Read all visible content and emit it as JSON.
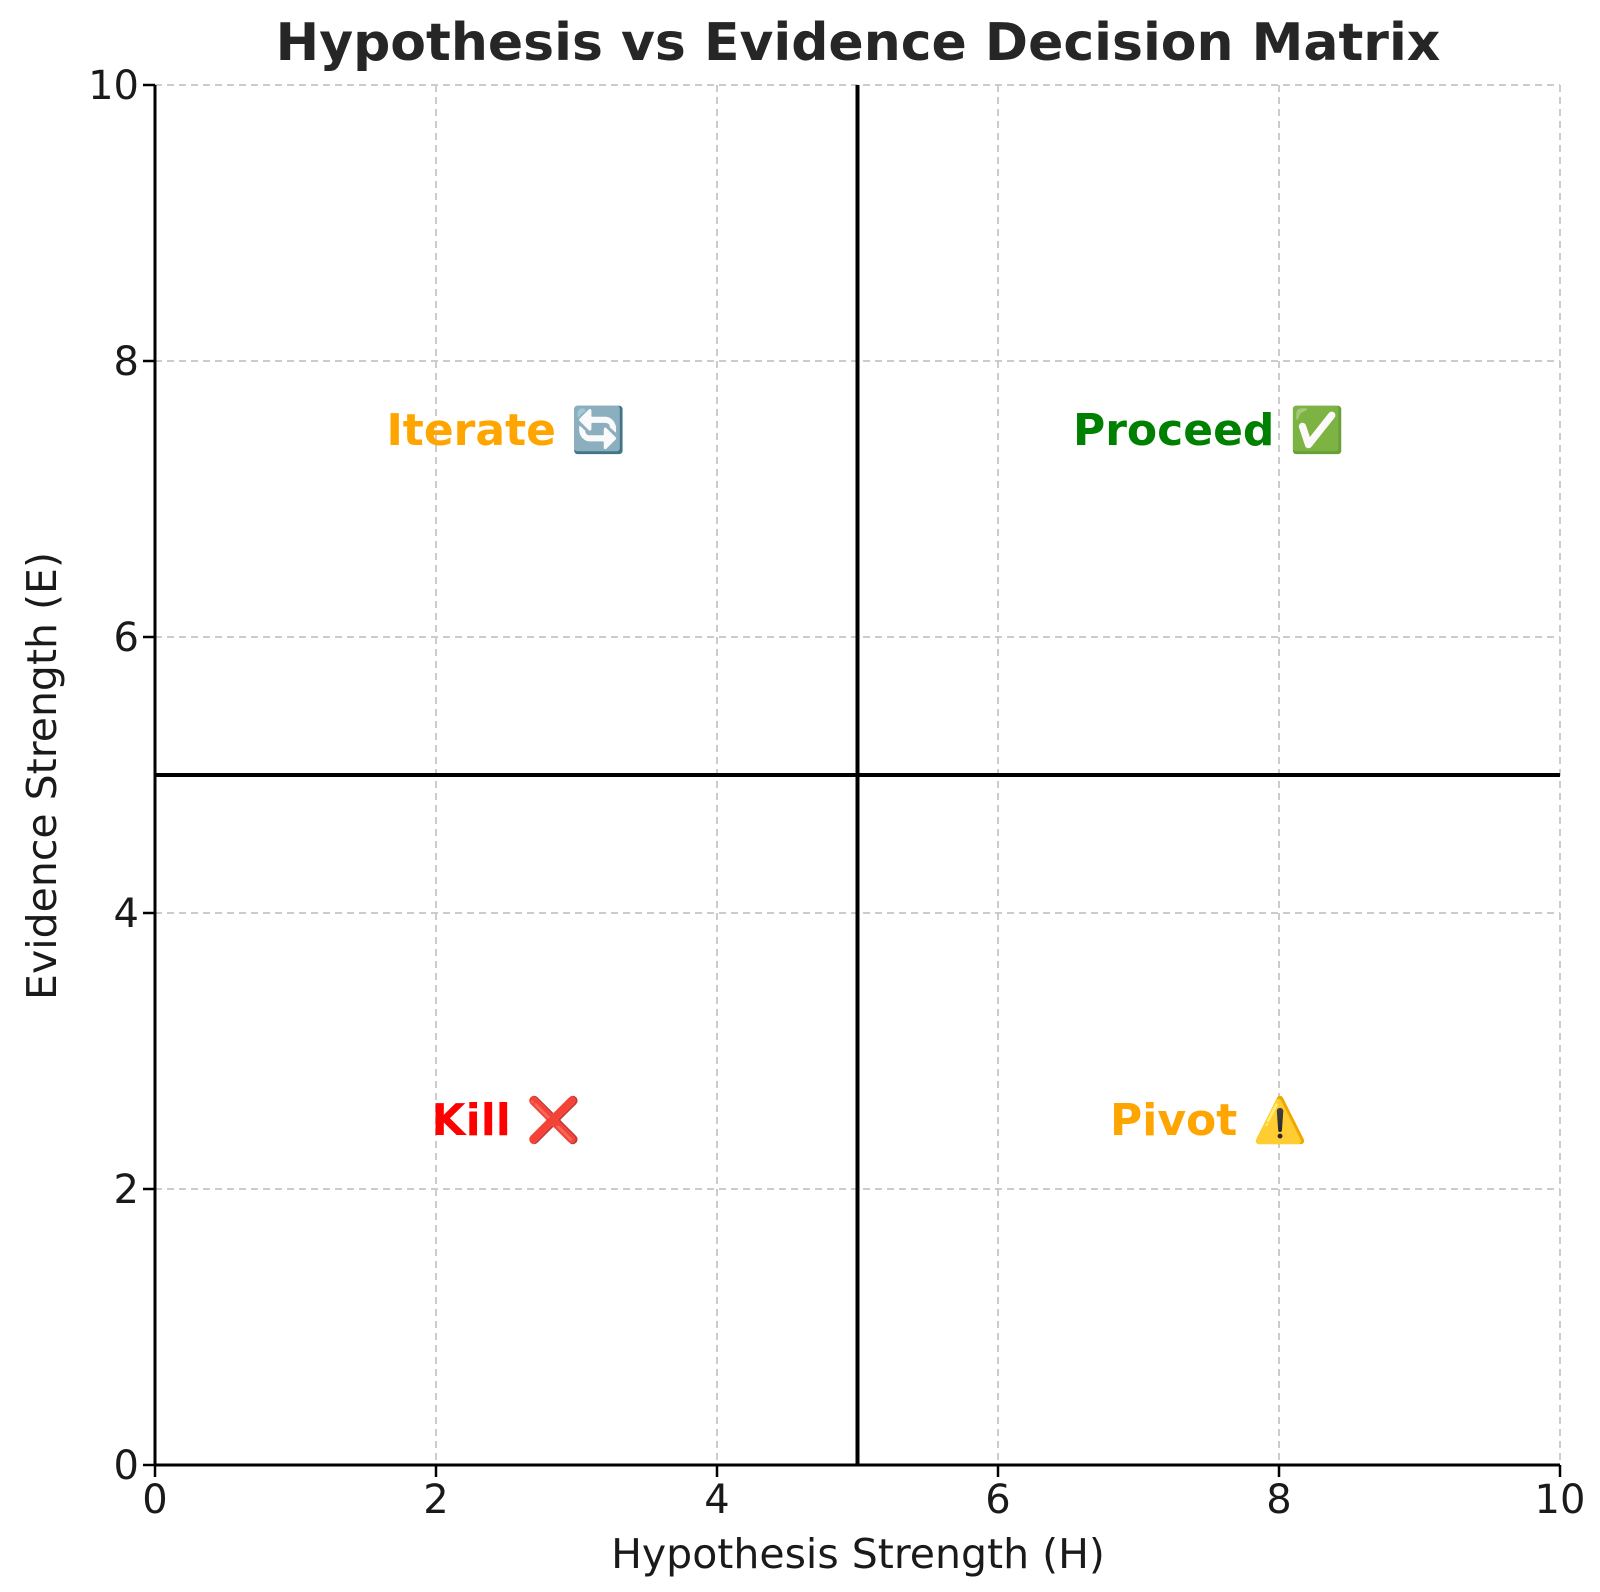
{
  "chart_data": {
    "type": "scatter",
    "title": "Hypothesis vs Evidence Decision Matrix",
    "xlabel": "Hypothesis Strength (H)",
    "ylabel": "Evidence Strength (E)",
    "xlim": [
      0,
      10
    ],
    "ylim": [
      0,
      10
    ],
    "xticks": [
      0,
      2,
      4,
      6,
      8,
      10
    ],
    "yticks": [
      0,
      2,
      4,
      6,
      8,
      10
    ],
    "grid": true,
    "thresholds": {
      "x": 5,
      "y": 5
    },
    "annotations": [
      {
        "text": "Iterate 🔄",
        "x": 2.5,
        "y": 7.5,
        "color": "#ffa500"
      },
      {
        "text": "Proceed ✅",
        "x": 7.5,
        "y": 7.5,
        "color": "#008000"
      },
      {
        "text": "Kill ❌",
        "x": 2.5,
        "y": 2.5,
        "color": "#ff0000"
      },
      {
        "text": "Pivot ⚠️",
        "x": 7.5,
        "y": 2.5,
        "color": "#ffa500"
      }
    ]
  }
}
